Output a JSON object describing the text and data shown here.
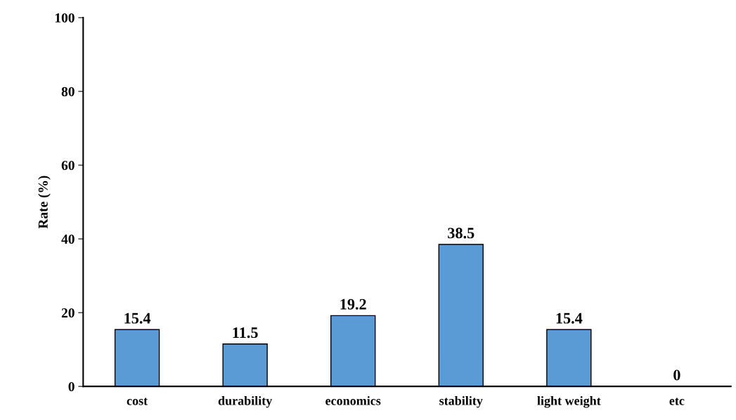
{
  "chart_data": {
    "type": "bar",
    "ylabel": "Rate (%)",
    "categories": [
      "cost",
      "durability",
      "economics",
      "stability",
      "light weight",
      "etc"
    ],
    "values": [
      15.4,
      11.5,
      19.2,
      38.5,
      15.4,
      0
    ],
    "color": "#5b9bd5",
    "ylim": [
      0,
      100
    ],
    "yticks": [
      0,
      20,
      40,
      60,
      80,
      100
    ],
    "grid": false,
    "data_labels": true
  }
}
